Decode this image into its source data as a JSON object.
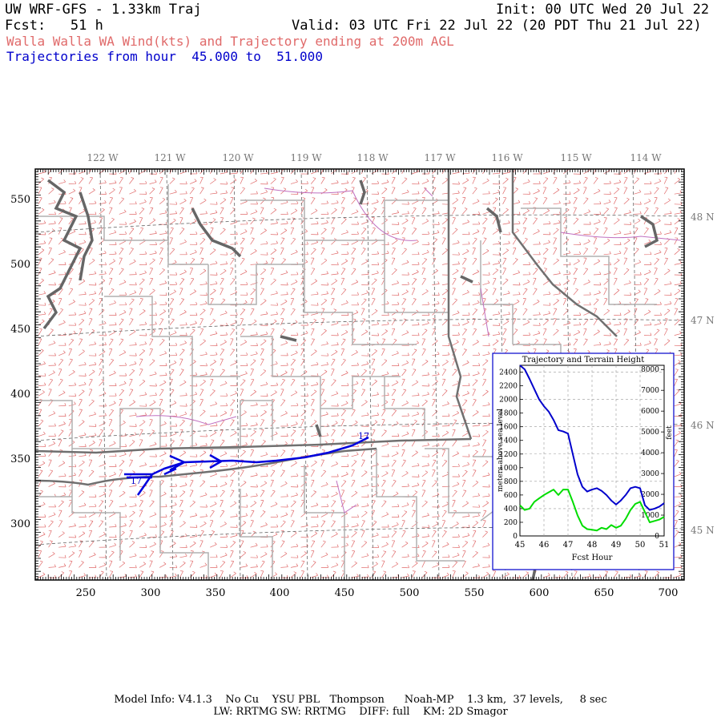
{
  "header": {
    "model_title": "UW WRF-GFS - 1.33km Traj",
    "init": "Init: 00 UTC Wed 20 Jul 22",
    "fcst": "Fcst:   51 h",
    "valid": "Valid: 03 UTC Fri 22 Jul 22 (20 PDT Thu 21 Jul 22)",
    "field": "Walla Walla WA Wind(kts) and Trajectory ending at 200m AGL",
    "traj_range": "Trajectories from hour  45.000 to  51.000"
  },
  "map": {
    "top_lon_labels": [
      "122 W",
      "121 W",
      "120 W",
      "119 W",
      "118 W",
      "117 W",
      "116 W",
      "115 W",
      "114 W"
    ],
    "right_lat_labels": [
      "48 N",
      "47 N",
      "46 N",
      "45 N"
    ],
    "x_grid_labels": [
      "250",
      "300",
      "350",
      "400",
      "450",
      "500",
      "550",
      "600",
      "650",
      "700"
    ],
    "y_grid_labels": [
      "550",
      "500",
      "450",
      "400",
      "350",
      "300"
    ],
    "traj_labels": [
      "17",
      "17"
    ],
    "colors": {
      "wind_barbs": "#e06a6a",
      "trajectory": "#0000dd",
      "coast": "#666666",
      "state": "#777777",
      "county": "#aaaaaa",
      "lake": "#c070c0"
    }
  },
  "inset": {
    "title": "Trajectory and Terrain Height",
    "ylabel_left": "meters above sea level",
    "ylabel_right": "feet",
    "xlabel": "Fcst Hour",
    "x_ticks": [
      "45",
      "46",
      "47",
      "48",
      "49",
      "50",
      "51"
    ],
    "y_ticks_m": [
      "0",
      "200",
      "400",
      "600",
      "800",
      "1000",
      "1200",
      "1400",
      "1600",
      "1800",
      "2000",
      "2200",
      "2400"
    ],
    "y_ticks_ft": [
      "0",
      "1000",
      "2000",
      "3000",
      "4000",
      "5000",
      "6000",
      "7000",
      "8000"
    ],
    "series_colors": {
      "trajectory": "#0000cc",
      "terrain": "#00dd00"
    }
  },
  "chart_data": {
    "type": "line",
    "title": "Trajectory and Terrain Height",
    "xlabel": "Fcst Hour",
    "ylabel": "meters above sea level",
    "xlim": [
      45,
      51
    ],
    "ylim": [
      0,
      2500
    ],
    "grid": true,
    "series": [
      {
        "x": [
          45.0,
          45.2,
          45.4,
          45.6,
          45.8,
          46.0,
          46.2,
          46.4,
          46.6,
          46.8,
          47.0,
          47.2,
          47.4,
          47.6,
          47.8,
          48.0,
          48.2,
          48.4,
          48.6,
          48.8,
          49.0,
          49.2,
          49.4,
          49.6,
          49.8,
          50.0,
          50.2,
          50.4,
          50.6,
          50.8,
          51.0
        ],
        "values": [
          2500,
          2440,
          2300,
          2150,
          2000,
          1900,
          1820,
          1700,
          1550,
          1530,
          1500,
          1200,
          900,
          720,
          650,
          680,
          700,
          660,
          600,
          520,
          460,
          520,
          600,
          700,
          720,
          700,
          450,
          380,
          400,
          430,
          480
        ]
      },
      {
        "x": [
          45.0,
          45.2,
          45.4,
          45.6,
          45.8,
          46.0,
          46.2,
          46.4,
          46.6,
          46.8,
          47.0,
          47.2,
          47.4,
          47.6,
          47.8,
          48.0,
          48.2,
          48.4,
          48.6,
          48.8,
          49.0,
          49.2,
          49.4,
          49.6,
          49.8,
          50.0,
          50.2,
          50.4,
          50.6,
          50.8,
          51.0
        ],
        "values": [
          450,
          380,
          400,
          500,
          550,
          600,
          640,
          680,
          600,
          680,
          680,
          500,
          300,
          150,
          100,
          90,
          80,
          120,
          100,
          160,
          120,
          150,
          250,
          380,
          470,
          500,
          350,
          200,
          220,
          240,
          280
        ]
      }
    ]
  },
  "footer": {
    "line1": "Model Info: V4.1.3    No Cu    YSU PBL   Thompson      Noah-MP    1.3 km,  37 levels,     8 sec",
    "line2": "LW: RRTMG SW: RRTMG    DIFF: full    KM: 2D Smagor"
  }
}
